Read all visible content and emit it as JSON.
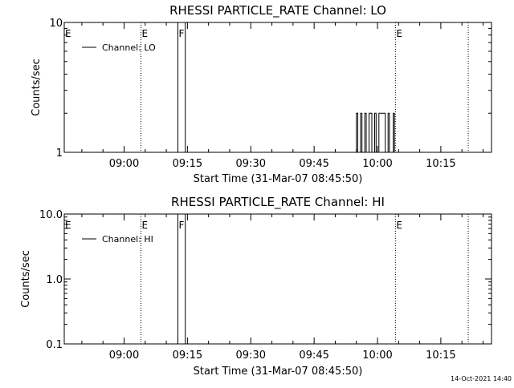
{
  "chart_data": [
    {
      "type": "line",
      "title": "RHESSI PARTICLE_RATE Channel: LO",
      "xlabel": "Start Time (31-Mar-07 08:45:50)",
      "ylabel": "Counts/sec",
      "yscale": "log",
      "ylim": [
        1,
        10
      ],
      "y_ticks": [
        "1",
        "10"
      ],
      "xlim": [
        "08:45:50",
        "10:27:00"
      ],
      "x_ticks": [
        "09:00",
        "09:15",
        "09:30",
        "09:45",
        "10:00",
        "10:15"
      ],
      "legend": {
        "entries": [
          "Channel: LO"
        ],
        "placement": "top-left"
      },
      "markers": [
        {
          "label": "E",
          "time": "08:45:50",
          "line": false
        },
        {
          "label": "E",
          "time": "09:04:00",
          "line": true
        },
        {
          "label": "F",
          "time": "09:12:45",
          "line": false
        },
        {
          "label": "E",
          "time": "10:04:15",
          "line": true
        },
        {
          "label": "",
          "time": "10:21:30",
          "line": true
        }
      ],
      "series": [
        {
          "name": "Channel: LO",
          "points": [
            [
              "09:12:45",
              1
            ],
            [
              "09:12:45",
              10
            ],
            [
              "09:14:30",
              10
            ],
            [
              "09:14:30",
              1
            ],
            [
              "09:55:00",
              1
            ],
            [
              "09:55:00",
              2
            ],
            [
              "09:55:20",
              2
            ],
            [
              "09:55:20",
              1
            ],
            [
              "09:56:00",
              1
            ],
            [
              "09:56:00",
              2
            ],
            [
              "09:56:20",
              2
            ],
            [
              "09:56:20",
              1
            ],
            [
              "09:57:00",
              1
            ],
            [
              "09:57:00",
              2
            ],
            [
              "09:57:20",
              2
            ],
            [
              "09:57:20",
              1
            ],
            [
              "09:58:00",
              1
            ],
            [
              "09:58:00",
              2
            ],
            [
              "09:58:40",
              2
            ],
            [
              "09:58:40",
              1
            ],
            [
              "09:59:20",
              1
            ],
            [
              "09:59:20",
              2
            ],
            [
              "09:59:40",
              2
            ],
            [
              "09:59:40",
              1
            ],
            [
              "10:00:20",
              1
            ],
            [
              "10:00:20",
              2
            ],
            [
              "10:01:50",
              2
            ],
            [
              "10:01:50",
              1
            ],
            [
              "10:02:30",
              1
            ],
            [
              "10:02:30",
              2
            ],
            [
              "10:02:50",
              2
            ],
            [
              "10:02:50",
              1
            ],
            [
              "10:03:45",
              1
            ],
            [
              "10:03:45",
              2
            ],
            [
              "10:04:00",
              2
            ],
            [
              "10:04:00",
              1
            ]
          ]
        }
      ]
    },
    {
      "type": "line",
      "title": "RHESSI PARTICLE_RATE Channel: HI",
      "xlabel": "Start Time (31-Mar-07 08:45:50)",
      "ylabel": "Counts/sec",
      "yscale": "log",
      "ylim": [
        0.1,
        10
      ],
      "y_ticks": [
        "0.1",
        "1.0",
        "10.0"
      ],
      "xlim": [
        "08:45:50",
        "10:27:00"
      ],
      "x_ticks": [
        "09:00",
        "09:15",
        "09:30",
        "09:45",
        "10:00",
        "10:15"
      ],
      "legend": {
        "entries": [
          "Channel: HI"
        ],
        "placement": "top-left"
      },
      "markers": [
        {
          "label": "E",
          "time": "08:45:50",
          "line": false
        },
        {
          "label": "E",
          "time": "09:04:00",
          "line": true
        },
        {
          "label": "F",
          "time": "09:12:45",
          "line": false
        },
        {
          "label": "E",
          "time": "10:04:15",
          "line": true
        },
        {
          "label": "",
          "time": "10:21:30",
          "line": true
        }
      ],
      "series": [
        {
          "name": "Channel: HI",
          "points": [
            [
              "09:12:45",
              0.1
            ],
            [
              "09:12:45",
              10
            ],
            [
              "09:14:30",
              10
            ],
            [
              "09:14:30",
              0.1
            ]
          ]
        }
      ]
    }
  ],
  "footer": {
    "timestamp": "14-Oct-2021 14:40"
  }
}
